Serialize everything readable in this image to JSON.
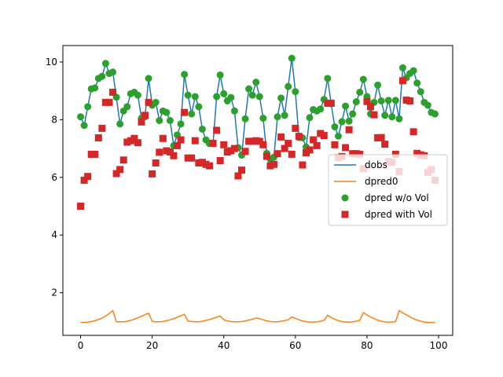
{
  "chart_data": {
    "type": "line",
    "title": "",
    "xlabel": "",
    "ylabel": "",
    "xlim": [
      -4.95,
      103.95
    ],
    "ylim": [
      0.52,
      10.57
    ],
    "xticks": [
      0,
      20,
      40,
      60,
      80,
      100
    ],
    "yticks": [
      2,
      4,
      6,
      8,
      10
    ],
    "grid": false,
    "legend_position": "center-right",
    "colors": {
      "dobs": "#1f77b4",
      "dpred0": "#ff7f0e",
      "wo_vol": "#2ca02c",
      "with_vol": "#d62728"
    },
    "series": [
      {
        "name": "dobs",
        "kind": "line",
        "x": [
          0,
          1,
          2,
          3,
          4,
          5,
          6,
          7,
          8,
          9,
          10,
          11,
          12,
          13,
          14,
          15,
          16,
          17,
          18,
          19,
          20,
          21,
          22,
          23,
          24,
          25,
          26,
          27,
          28,
          29,
          30,
          31,
          32,
          33,
          34,
          35,
          36,
          37,
          38,
          39,
          40,
          41,
          42,
          43,
          44,
          45,
          46,
          47,
          48,
          49,
          50,
          51,
          52,
          53,
          54,
          55,
          56,
          57,
          58,
          59,
          60,
          61,
          62,
          63,
          64,
          65,
          66,
          67,
          68,
          69,
          70,
          71,
          72,
          73,
          74,
          75,
          76,
          77,
          78,
          79,
          80,
          81,
          82,
          83,
          84,
          85,
          86,
          87,
          88,
          89,
          90,
          91,
          92,
          93,
          94,
          95,
          96,
          97,
          98,
          99
        ],
        "values": [
          8.1,
          7.8,
          8.45,
          9.07,
          9.1,
          9.43,
          9.5,
          9.95,
          9.6,
          9.65,
          8.78,
          7.85,
          8.3,
          8.45,
          8.9,
          8.95,
          8.85,
          8.05,
          8.1,
          9.43,
          8.5,
          8.6,
          7.97,
          8.3,
          8.25,
          7.97,
          7.1,
          7.47,
          7.85,
          9.57,
          8.85,
          8.2,
          8.8,
          8.45,
          7.67,
          7.3,
          7.17,
          7.17,
          8.8,
          9.55,
          8.9,
          8.65,
          8.77,
          8.3,
          7.03,
          6.77,
          8.03,
          9.07,
          8.85,
          9.3,
          8.8,
          8.05,
          6.83,
          6.63,
          6.7,
          8.1,
          8.75,
          8.15,
          9.15,
          10.13,
          8.97,
          7.38,
          7.37,
          7.05,
          8.07,
          8.35,
          8.3,
          8.37,
          8.7,
          9.43,
          8.55,
          7.75,
          7.43,
          7.93,
          8.47,
          7.95,
          8.2,
          8.62,
          8.95,
          9.4,
          8.8,
          8.2,
          8.6,
          9.2,
          8.65,
          8.15,
          8.67,
          8.1,
          8.67,
          8.03,
          9.8,
          9.45,
          9.6,
          9.7,
          9.27,
          8.97,
          8.6,
          8.5,
          8.25,
          8.2
        ]
      },
      {
        "name": "dpred0",
        "kind": "line",
        "x": [
          0,
          1,
          2,
          3,
          4,
          5,
          6,
          7,
          8,
          9,
          10,
          11,
          12,
          13,
          14,
          15,
          16,
          17,
          18,
          19,
          20,
          21,
          22,
          23,
          24,
          25,
          26,
          27,
          28,
          29,
          30,
          31,
          32,
          33,
          34,
          35,
          36,
          37,
          38,
          39,
          40,
          41,
          42,
          43,
          44,
          45,
          46,
          47,
          48,
          49,
          50,
          51,
          52,
          53,
          54,
          55,
          56,
          57,
          58,
          59,
          60,
          61,
          62,
          63,
          64,
          65,
          66,
          67,
          68,
          69,
          70,
          71,
          72,
          73,
          74,
          75,
          76,
          77,
          78,
          79,
          80,
          81,
          82,
          83,
          84,
          85,
          86,
          87,
          88,
          89,
          90,
          91,
          92,
          93,
          94,
          95,
          96,
          97,
          98,
          99
        ],
        "values": [
          0.97,
          0.97,
          0.98,
          1.0,
          1.03,
          1.07,
          1.12,
          1.19,
          1.28,
          1.38,
          0.99,
          0.99,
          0.99,
          1.01,
          1.04,
          1.08,
          1.13,
          1.18,
          1.24,
          1.29,
          1.01,
          0.99,
          0.99,
          1.0,
          1.03,
          1.06,
          1.1,
          1.15,
          1.2,
          1.25,
          1.02,
          1.0,
          0.99,
          0.99,
          1.01,
          1.04,
          1.07,
          1.11,
          1.15,
          1.19,
          1.06,
          1.02,
          1.0,
          0.99,
          0.99,
          1.0,
          1.02,
          1.05,
          1.08,
          1.12,
          1.1,
          1.06,
          1.02,
          1.0,
          0.99,
          0.99,
          1.01,
          1.03,
          1.06,
          1.16,
          1.11,
          1.06,
          1.02,
          0.99,
          0.98,
          0.98,
          0.99,
          1.01,
          1.04,
          1.22,
          1.14,
          1.08,
          1.03,
          1.0,
          0.98,
          0.98,
          0.99,
          1.01,
          1.04,
          1.31,
          1.23,
          1.16,
          1.1,
          1.05,
          1.01,
          0.99,
          0.98,
          0.98,
          1.0,
          1.38,
          1.3,
          1.23,
          1.16,
          1.1,
          1.05,
          1.01,
          0.98,
          0.97,
          0.97,
          0.97
        ]
      },
      {
        "name": "dpred w/o Vol",
        "kind": "marker-circle",
        "x": [
          0,
          1,
          2,
          3,
          4,
          5,
          6,
          7,
          8,
          9,
          10,
          11,
          12,
          13,
          14,
          15,
          16,
          17,
          18,
          19,
          20,
          21,
          22,
          23,
          24,
          25,
          26,
          27,
          28,
          29,
          30,
          31,
          32,
          33,
          34,
          35,
          36,
          37,
          38,
          39,
          40,
          41,
          42,
          43,
          44,
          45,
          46,
          47,
          48,
          49,
          50,
          51,
          52,
          53,
          54,
          55,
          56,
          57,
          58,
          59,
          60,
          61,
          62,
          63,
          64,
          65,
          66,
          67,
          68,
          69,
          70,
          71,
          72,
          73,
          74,
          75,
          76,
          77,
          78,
          79,
          80,
          81,
          82,
          83,
          84,
          85,
          86,
          87,
          88,
          89,
          90,
          91,
          92,
          93,
          94,
          95,
          96,
          97,
          98,
          99
        ],
        "values": [
          8.1,
          7.8,
          8.45,
          9.07,
          9.1,
          9.43,
          9.5,
          9.95,
          9.6,
          9.65,
          8.78,
          7.85,
          8.3,
          8.45,
          8.9,
          8.95,
          8.85,
          8.05,
          8.1,
          9.43,
          8.5,
          8.6,
          7.97,
          8.3,
          8.25,
          7.97,
          7.1,
          7.47,
          7.85,
          9.57,
          8.85,
          8.2,
          8.8,
          8.45,
          7.67,
          7.3,
          7.17,
          7.17,
          8.8,
          9.55,
          8.9,
          8.65,
          8.77,
          8.3,
          7.03,
          6.77,
          8.03,
          9.07,
          8.85,
          9.3,
          8.8,
          8.05,
          6.83,
          6.63,
          6.7,
          8.1,
          8.75,
          8.15,
          9.15,
          10.13,
          8.97,
          7.38,
          7.37,
          7.05,
          8.07,
          8.35,
          8.3,
          8.37,
          8.7,
          9.43,
          8.55,
          7.75,
          7.43,
          7.93,
          8.47,
          7.95,
          8.2,
          8.62,
          8.95,
          9.4,
          8.8,
          8.2,
          8.6,
          9.2,
          8.65,
          8.15,
          8.67,
          8.1,
          8.67,
          8.03,
          9.8,
          9.45,
          9.6,
          9.7,
          9.27,
          8.97,
          8.6,
          8.5,
          8.25,
          8.2
        ]
      },
      {
        "name": "dpred with Vol",
        "kind": "marker-square",
        "x": [
          0,
          1,
          2,
          3,
          4,
          5,
          6,
          7,
          8,
          9,
          10,
          11,
          12,
          13,
          14,
          15,
          16,
          17,
          18,
          19,
          20,
          21,
          22,
          23,
          24,
          25,
          26,
          27,
          28,
          29,
          30,
          31,
          32,
          33,
          34,
          35,
          36,
          37,
          38,
          39,
          40,
          41,
          42,
          43,
          44,
          45,
          46,
          47,
          48,
          49,
          50,
          51,
          52,
          53,
          54,
          55,
          56,
          57,
          58,
          59,
          60,
          61,
          62,
          63,
          64,
          65,
          66,
          67,
          68,
          69,
          70,
          71,
          72,
          73,
          74,
          75,
          76,
          77,
          78,
          79,
          80,
          81,
          82,
          83,
          84,
          85,
          86,
          87,
          88,
          89,
          90,
          91,
          92,
          93,
          94,
          95,
          96,
          97,
          98,
          99
        ],
        "values": [
          5.0,
          5.9,
          6.03,
          6.8,
          6.8,
          7.37,
          7.7,
          8.6,
          8.6,
          8.95,
          6.13,
          6.27,
          6.6,
          7.22,
          7.27,
          7.35,
          7.2,
          7.92,
          8.15,
          8.6,
          6.12,
          6.5,
          6.87,
          7.35,
          6.92,
          6.88,
          6.75,
          7.1,
          7.3,
          8.25,
          6.67,
          6.67,
          7.27,
          6.5,
          6.52,
          6.45,
          6.4,
          7.18,
          7.63,
          6.58,
          7.13,
          6.88,
          6.92,
          7.0,
          6.05,
          6.25,
          6.9,
          7.25,
          7.25,
          7.27,
          7.25,
          7.13,
          6.73,
          6.4,
          6.45,
          6.82,
          7.4,
          7.0,
          7.18,
          6.8,
          7.7,
          7.42,
          6.43,
          6.85,
          6.95,
          7.3,
          7.1,
          7.52,
          7.45,
          8.57,
          8.57,
          7.13,
          6.68,
          6.72,
          7.03,
          7.65,
          6.82,
          6.82,
          6.8,
          6.3,
          8.63,
          8.45,
          8.17,
          7.37,
          7.38,
          7.15,
          6.55,
          6.52,
          6.8,
          6.2,
          9.35,
          8.68,
          8.65,
          7.58,
          6.83,
          6.78,
          6.75,
          6.17,
          6.27,
          5.9
        ]
      }
    ]
  }
}
